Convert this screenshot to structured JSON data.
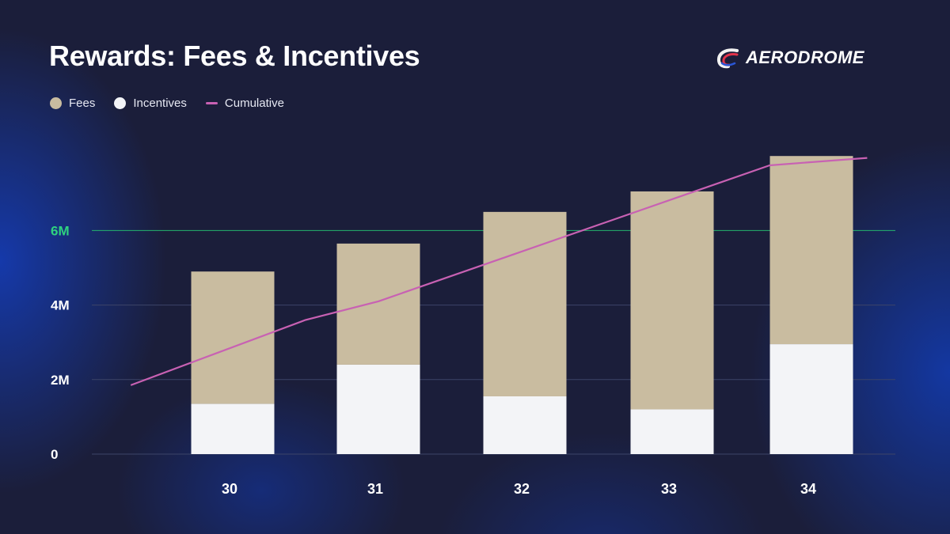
{
  "title": "Rewards: Fees & Incentives",
  "logo": {
    "text": "AERODROME",
    "name": "aerodrome-logo"
  },
  "colors": {
    "fees": "#c9bca0",
    "incentives": "#f3f4f7",
    "cumulative": "#c861b3",
    "gridline": "#3c4468",
    "highlight_gridline": "#24b46e",
    "highlight_label": "#2fd27f",
    "label": "#ffffff"
  },
  "chart_data": {
    "type": "bar",
    "stacked": true,
    "categories": [
      "30",
      "31",
      "32",
      "33",
      "34"
    ],
    "series": [
      {
        "name": "Fees",
        "values": [
          3.55,
          3.25,
          4.95,
          5.85,
          5.05
        ]
      },
      {
        "name": "Incentives",
        "values": [
          1.35,
          2.4,
          1.55,
          1.2,
          2.95
        ]
      }
    ],
    "cumulative_line": {
      "name": "Cumulative",
      "x": [
        29.3,
        30.5,
        31,
        33.7,
        34.4
      ],
      "y": [
        1.85,
        3.6,
        4.1,
        7.75,
        7.95
      ]
    },
    "yticks": [
      {
        "value": 0,
        "label": "0",
        "highlight": false
      },
      {
        "value": 2,
        "label": "2M",
        "highlight": false
      },
      {
        "value": 4,
        "label": "4M",
        "highlight": false
      },
      {
        "value": 6,
        "label": "6M",
        "highlight": true
      }
    ],
    "ylim": [
      0,
      8.5
    ],
    "legend": [
      "Fees",
      "Incentives",
      "Cumulative"
    ],
    "legend_position": "top-left",
    "grid": true
  }
}
